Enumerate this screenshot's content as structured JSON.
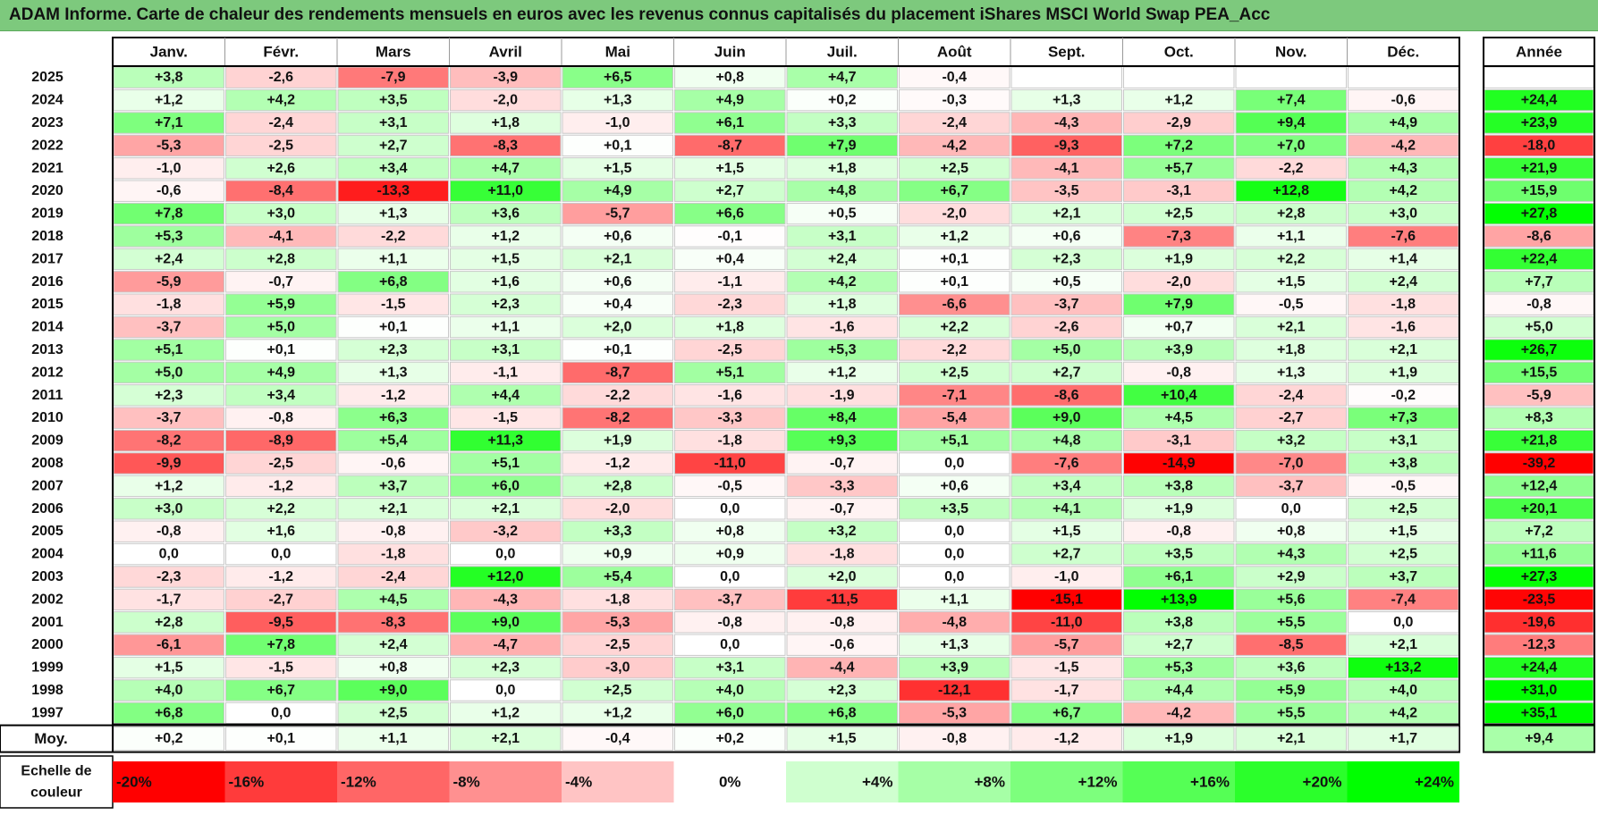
{
  "title": "ADAM Informe. Carte de chaleur des rendements mensuels en euros avec les revenus connus capitalisés du placement iShares MSCI World Swap PEA_Acc",
  "chart_data": {
    "type": "heatmap",
    "months": [
      "Janv.",
      "Févr.",
      "Mars",
      "Avril",
      "Mai",
      "Juin",
      "Juil.",
      "Août",
      "Sept.",
      "Oct.",
      "Nov.",
      "Déc."
    ],
    "year_header": "Année",
    "rows": [
      {
        "year": "2025",
        "months": [
          "+3,8",
          "-2,6",
          "-7,9",
          "-3,9",
          "+6,5",
          "+0,8",
          "+4,7",
          "-0,4",
          "",
          "",
          "",
          ""
        ],
        "annual": ""
      },
      {
        "year": "2024",
        "months": [
          "+1,2",
          "+4,2",
          "+3,5",
          "-2,0",
          "+1,3",
          "+4,9",
          "+0,2",
          "-0,3",
          "+1,3",
          "+1,2",
          "+7,4",
          "-0,6"
        ],
        "annual": "+24,4"
      },
      {
        "year": "2023",
        "months": [
          "+7,1",
          "-2,4",
          "+3,1",
          "+1,8",
          "-1,0",
          "+6,1",
          "+3,3",
          "-2,4",
          "-4,3",
          "-2,9",
          "+9,4",
          "+4,9"
        ],
        "annual": "+23,9"
      },
      {
        "year": "2022",
        "months": [
          "-5,3",
          "-2,5",
          "+2,7",
          "-8,3",
          "+0,1",
          "-8,7",
          "+7,9",
          "-4,2",
          "-9,3",
          "+7,2",
          "+7,0",
          "-4,2"
        ],
        "annual": "-18,0"
      },
      {
        "year": "2021",
        "months": [
          "-1,0",
          "+2,6",
          "+3,4",
          "+4,7",
          "+1,5",
          "+1,5",
          "+1,8",
          "+2,5",
          "-4,1",
          "+5,7",
          "-2,2",
          "+4,3"
        ],
        "annual": "+21,9"
      },
      {
        "year": "2020",
        "months": [
          "-0,6",
          "-8,4",
          "-13,3",
          "+11,0",
          "+4,9",
          "+2,7",
          "+4,8",
          "+6,7",
          "-3,5",
          "-3,1",
          "+12,8",
          "+4,2"
        ],
        "annual": "+15,9"
      },
      {
        "year": "2019",
        "months": [
          "+7,8",
          "+3,0",
          "+1,3",
          "+3,6",
          "-5,7",
          "+6,6",
          "+0,5",
          "-2,0",
          "+2,1",
          "+2,5",
          "+2,8",
          "+3,0"
        ],
        "annual": "+27,8"
      },
      {
        "year": "2018",
        "months": [
          "+5,3",
          "-4,1",
          "-2,2",
          "+1,2",
          "+0,6",
          "-0,1",
          "+3,1",
          "+1,2",
          "+0,6",
          "-7,3",
          "+1,1",
          "-7,6"
        ],
        "annual": "-8,6"
      },
      {
        "year": "2017",
        "months": [
          "+2,4",
          "+2,8",
          "+1,1",
          "+1,5",
          "+2,1",
          "+0,4",
          "+2,4",
          "+0,1",
          "+2,3",
          "+1,9",
          "+2,2",
          "+1,4"
        ],
        "annual": "+22,4"
      },
      {
        "year": "2016",
        "months": [
          "-5,9",
          "-0,7",
          "+6,8",
          "+1,6",
          "+0,6",
          "-1,1",
          "+4,2",
          "+0,1",
          "+0,5",
          "-2,0",
          "+1,5",
          "+2,4"
        ],
        "annual": "+7,7"
      },
      {
        "year": "2015",
        "months": [
          "-1,8",
          "+5,9",
          "-1,5",
          "+2,3",
          "+0,4",
          "-2,3",
          "+1,8",
          "-6,6",
          "-3,7",
          "+7,9",
          "-0,5",
          "-1,8"
        ],
        "annual": "-0,8"
      },
      {
        "year": "2014",
        "months": [
          "-3,7",
          "+5,0",
          "+0,1",
          "+1,1",
          "+2,0",
          "+1,8",
          "-1,6",
          "+2,2",
          "-2,6",
          "+0,7",
          "+2,1",
          "-1,6"
        ],
        "annual": "+5,0"
      },
      {
        "year": "2013",
        "months": [
          "+5,1",
          "+0,1",
          "+2,3",
          "+3,1",
          "+0,1",
          "-2,5",
          "+5,3",
          "-2,2",
          "+5,0",
          "+3,9",
          "+1,8",
          "+2,1"
        ],
        "annual": "+26,7"
      },
      {
        "year": "2012",
        "months": [
          "+5,0",
          "+4,9",
          "+1,3",
          "-1,1",
          "-8,7",
          "+5,1",
          "+1,2",
          "+2,5",
          "+2,7",
          "-0,8",
          "+1,3",
          "+1,9"
        ],
        "annual": "+15,5"
      },
      {
        "year": "2011",
        "months": [
          "+2,3",
          "+3,4",
          "-1,2",
          "+4,4",
          "-2,2",
          "-1,6",
          "-1,9",
          "-7,1",
          "-8,6",
          "+10,4",
          "-2,4",
          "-0,2"
        ],
        "annual": "-5,9"
      },
      {
        "year": "2010",
        "months": [
          "-3,7",
          "-0,8",
          "+6,3",
          "-1,5",
          "-8,2",
          "-3,3",
          "+8,4",
          "-5,4",
          "+9,0",
          "+4,5",
          "-2,7",
          "+7,3"
        ],
        "annual": "+8,3"
      },
      {
        "year": "2009",
        "months": [
          "-8,2",
          "-8,9",
          "+5,4",
          "+11,3",
          "+1,9",
          "-1,8",
          "+9,3",
          "+5,1",
          "+4,8",
          "-3,1",
          "+3,2",
          "+3,1"
        ],
        "annual": "+21,8"
      },
      {
        "year": "2008",
        "months": [
          "-9,9",
          "-2,5",
          "-0,6",
          "+5,1",
          "-1,2",
          "-11,0",
          "-0,7",
          "0,0",
          "-7,6",
          "-14,9",
          "-7,0",
          "+3,8"
        ],
        "annual": "-39,2"
      },
      {
        "year": "2007",
        "months": [
          "+1,2",
          "-1,2",
          "+3,7",
          "+6,0",
          "+2,8",
          "-0,5",
          "-3,3",
          "+0,6",
          "+3,4",
          "+3,8",
          "-3,7",
          "-0,5"
        ],
        "annual": "+12,4"
      },
      {
        "year": "2006",
        "months": [
          "+3,0",
          "+2,2",
          "+2,1",
          "+2,1",
          "-2,0",
          "0,0",
          "-0,7",
          "+3,5",
          "+4,1",
          "+1,9",
          "0,0",
          "+2,5"
        ],
        "annual": "+20,1"
      },
      {
        "year": "2005",
        "months": [
          "-0,8",
          "+1,6",
          "-0,8",
          "-3,2",
          "+3,3",
          "+0,8",
          "+3,2",
          "0,0",
          "+1,5",
          "-0,8",
          "+0,8",
          "+1,5"
        ],
        "annual": "+7,2"
      },
      {
        "year": "2004",
        "months": [
          "0,0",
          "0,0",
          "-1,8",
          "0,0",
          "+0,9",
          "+0,9",
          "-1,8",
          "0,0",
          "+2,7",
          "+3,5",
          "+4,3",
          "+2,5"
        ],
        "annual": "+11,6"
      },
      {
        "year": "2003",
        "months": [
          "-2,3",
          "-1,2",
          "-2,4",
          "+12,0",
          "+5,4",
          "0,0",
          "+2,0",
          "0,0",
          "-1,0",
          "+6,1",
          "+2,9",
          "+3,7"
        ],
        "annual": "+27,3"
      },
      {
        "year": "2002",
        "months": [
          "-1,7",
          "-2,7",
          "+4,5",
          "-4,3",
          "-1,8",
          "-3,7",
          "-11,5",
          "+1,1",
          "-15,1",
          "+13,9",
          "+5,6",
          "-7,4"
        ],
        "annual": "-23,5"
      },
      {
        "year": "2001",
        "months": [
          "+2,8",
          "-9,5",
          "-8,3",
          "+9,0",
          "-5,3",
          "-0,8",
          "-0,8",
          "-4,8",
          "-11,0",
          "+3,8",
          "+5,5",
          "0,0"
        ],
        "annual": "-19,6"
      },
      {
        "year": "2000",
        "months": [
          "-6,1",
          "+7,8",
          "+2,4",
          "-4,7",
          "-2,5",
          "0,0",
          "-0,6",
          "+1,3",
          "-5,7",
          "+2,7",
          "-8,5",
          "+2,1"
        ],
        "annual": "-12,3"
      },
      {
        "year": "1999",
        "months": [
          "+1,5",
          "-1,5",
          "+0,8",
          "+2,3",
          "-3,0",
          "+3,1",
          "-4,4",
          "+3,9",
          "-1,5",
          "+5,3",
          "+3,6",
          "+13,2"
        ],
        "annual": "+24,4"
      },
      {
        "year": "1998",
        "months": [
          "+4,0",
          "+6,7",
          "+9,0",
          "0,0",
          "+2,5",
          "+4,0",
          "+2,3",
          "-12,1",
          "-1,7",
          "+4,4",
          "+5,9",
          "+4,0"
        ],
        "annual": "+31,0"
      },
      {
        "year": "1997",
        "months": [
          "+6,8",
          "0,0",
          "+2,5",
          "+1,2",
          "+1,2",
          "+6,0",
          "+6,8",
          "-5,3",
          "+6,7",
          "-4,2",
          "+5,5",
          "+4,2"
        ],
        "annual": "+35,1"
      }
    ],
    "average": {
      "label": "Moy.",
      "months": [
        "+0,2",
        "+0,1",
        "+1,1",
        "+2,1",
        "-0,4",
        "+0,2",
        "+1,5",
        "-0,8",
        "-1,2",
        "+1,9",
        "+2,1",
        "+1,7"
      ],
      "annual": "+9,4"
    },
    "scale": {
      "label": "Echelle de couleur",
      "items": [
        "-20%",
        "-16%",
        "-12%",
        "-8%",
        "-4%",
        "0%",
        "+4%",
        "+8%",
        "+12%",
        "+16%",
        "+20%",
        "+24%"
      ],
      "values": [
        -20,
        -16,
        -12,
        -8,
        -4,
        0,
        4,
        8,
        12,
        16,
        20,
        24
      ],
      "colors": [
        "#ff0000",
        "#ff3b3b",
        "#ff6666",
        "#ff9090",
        "#ffc4c4",
        "#ffffff",
        "#cfffcf",
        "#a6ffa6",
        "#7dff7d",
        "#55ff55",
        "#2bff2b",
        "#00ff00"
      ]
    }
  }
}
